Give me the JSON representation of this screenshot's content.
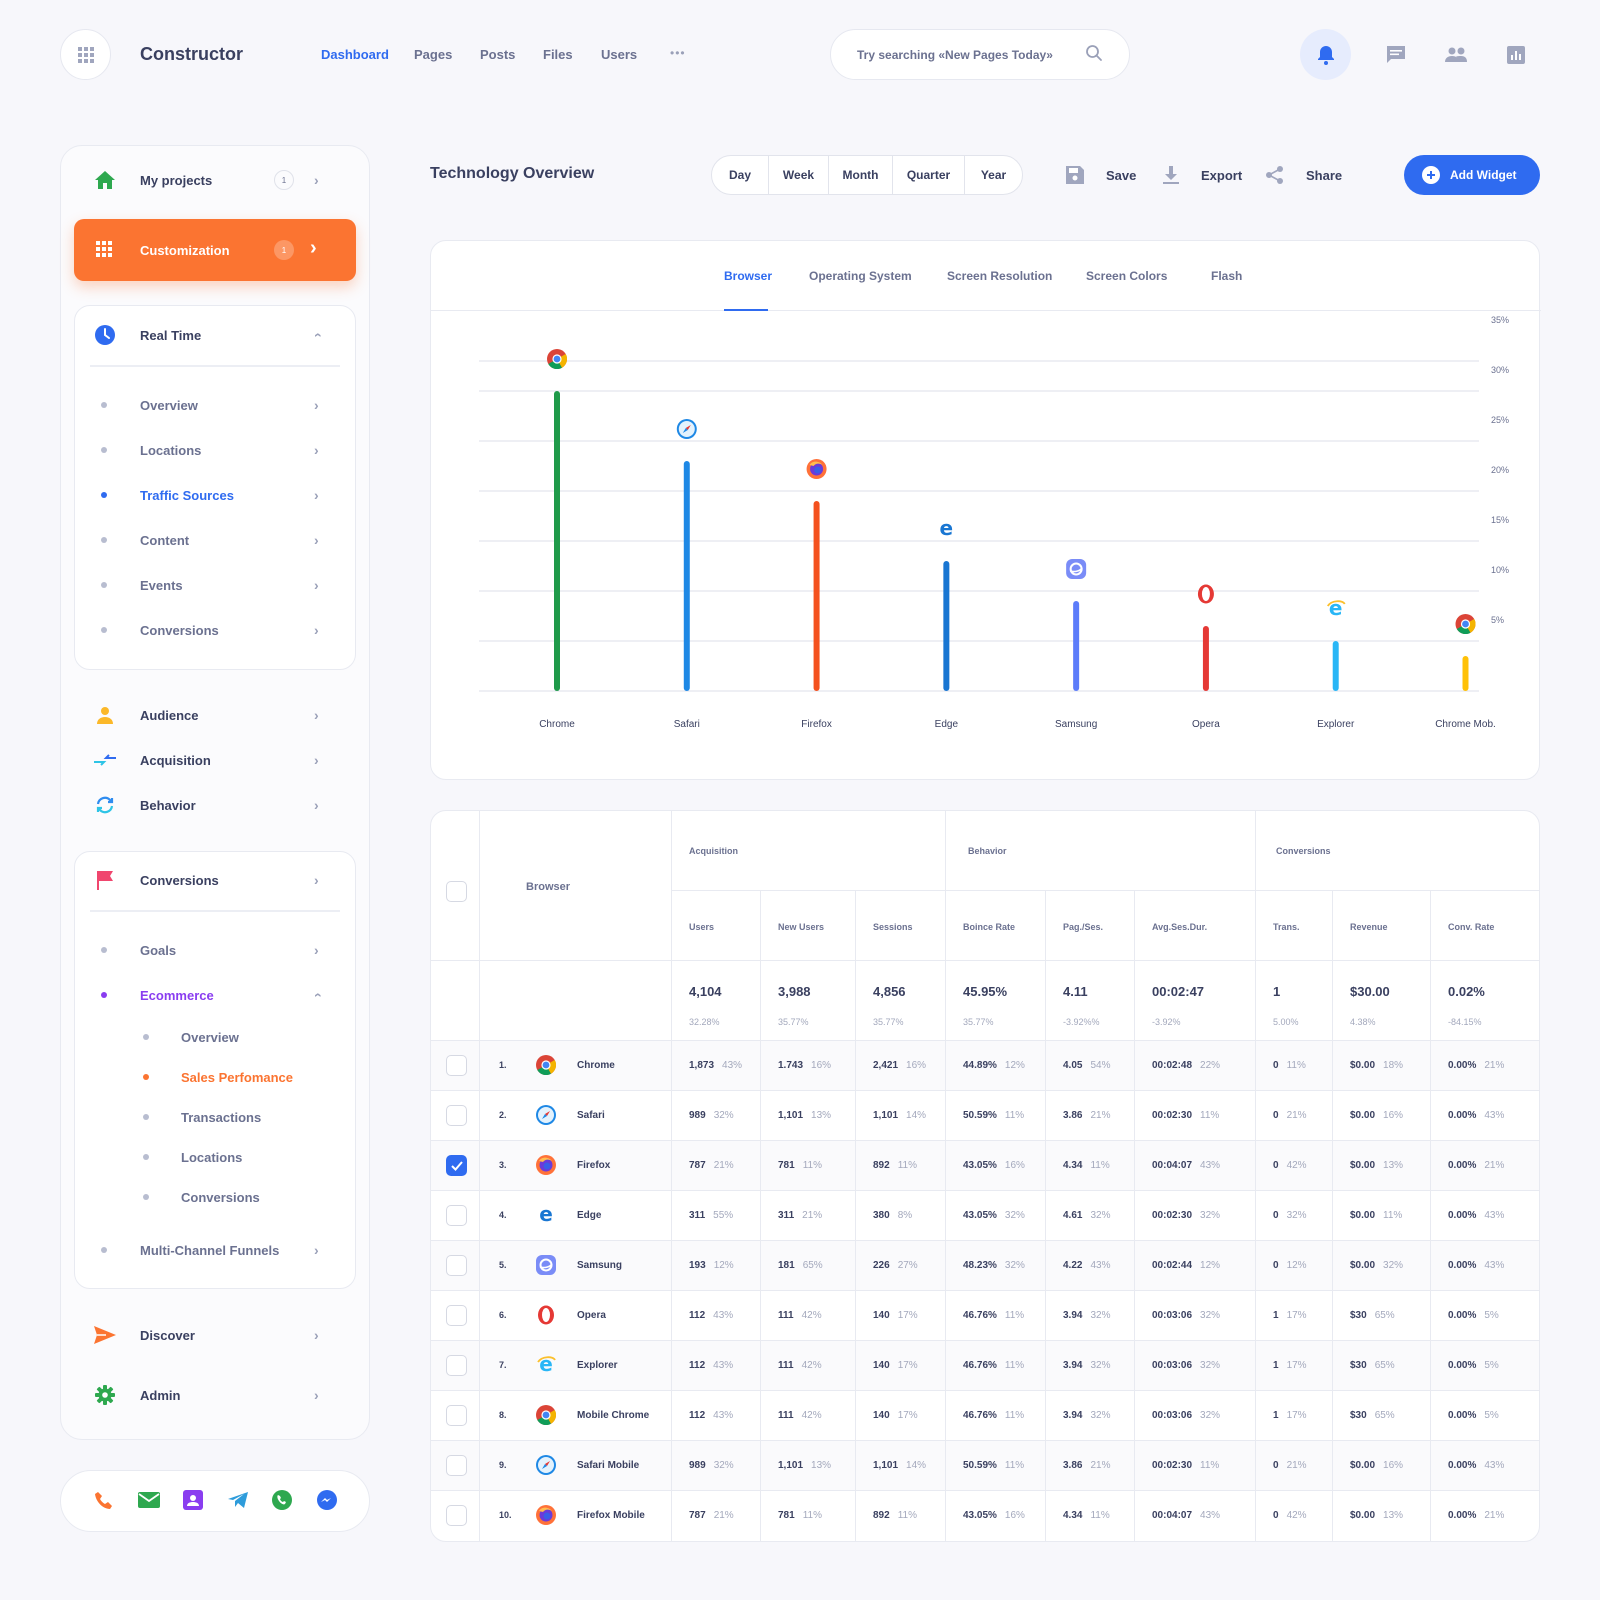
{
  "app": {
    "title": "Constructor"
  },
  "topnav": [
    {
      "label": "Dashboard",
      "active": true
    },
    {
      "label": "Pages"
    },
    {
      "label": "Posts"
    },
    {
      "label": "Files"
    },
    {
      "label": "Users"
    },
    {
      "label": "•••"
    }
  ],
  "search": {
    "placeholder": "Try searching «New Pages Today»"
  },
  "sidebar": {
    "my_projects": {
      "label": "My projects",
      "badge": "1"
    },
    "customization": {
      "label": "Customization",
      "badge": "1"
    },
    "real_time": {
      "label": "Real Time",
      "items": [
        "Overview",
        "Locations",
        "Traffic Sources",
        "Content",
        "Events",
        "Conversions"
      ]
    },
    "audience": "Audience",
    "acquisition": "Acquisition",
    "behavior": "Behavior",
    "conversions": {
      "label": "Conversions",
      "items": [
        "Goals",
        "Ecommerce",
        "Multi-Channel Funnels"
      ]
    },
    "ecommerce_items": [
      "Overview",
      "Sales Perfomance",
      "Transactions",
      "Locations",
      "Conversions"
    ],
    "discover": "Discover",
    "admin": "Admin"
  },
  "header": {
    "title": "Technology Overview",
    "periods": [
      "Day",
      "Week",
      "Month",
      "Quarter",
      "Year"
    ],
    "save": "Save",
    "export": "Export",
    "share": "Share",
    "add_widget": "Add Widget"
  },
  "chart_tabs": [
    "Browser",
    "Operating System",
    "Screen Resolution",
    "Screen Colors",
    "Flash"
  ],
  "chart_data": {
    "type": "bar",
    "categories": [
      "Chrome",
      "Safari",
      "Firefox",
      "Edge",
      "Samsung",
      "Opera",
      "Explorer",
      "Chrome Mob."
    ],
    "values": [
      30.0,
      23.0,
      19.0,
      13.0,
      9.0,
      6.5,
      5.0,
      3.5
    ],
    "ylim": [
      0,
      35
    ],
    "yticks": [
      5,
      10,
      15,
      20,
      25,
      30,
      35
    ],
    "ytick_labels": [
      "5%",
      "10%",
      "15%",
      "20%",
      "25%",
      "30%",
      "35%"
    ],
    "colors": [
      "#1f9a4a",
      "#1e88e5",
      "#f4511e",
      "#1976d2",
      "#5c7cfa",
      "#e53935",
      "#29b6f6",
      "#ffc107"
    ],
    "grid": true
  },
  "table": {
    "browser_header": "Browser",
    "groups": [
      "Acquisition",
      "Behavior",
      "Conversions"
    ],
    "columns": [
      "Users",
      "New Users",
      "Sessions",
      "Boince Rate",
      "Pag./Ses.",
      "Avg.Ses.Dur.",
      "Trans.",
      "Revenue",
      "Conv. Rate"
    ],
    "totals": [
      "4,104",
      "3,988",
      "4,856",
      "45.95%",
      "4.11",
      "00:02:47",
      "1",
      "$30.00",
      "0.02%"
    ],
    "totals_pct": [
      "32.28%",
      "35.77%",
      "35.77%",
      "35.77%",
      "-3.92%%",
      "-3.92%",
      "5.00%",
      "4.38%",
      "-84.15%"
    ],
    "rows": [
      {
        "n": "1.",
        "name": "Chrome",
        "icon": "chrome",
        "checked": false,
        "v": [
          [
            "1,873",
            "43%"
          ],
          [
            "1.743",
            "16%"
          ],
          [
            "2,421",
            "16%"
          ],
          [
            "44.89%",
            "12%"
          ],
          [
            "4.05",
            "54%"
          ],
          [
            "00:02:48",
            "22%"
          ],
          [
            "0",
            "11%"
          ],
          [
            "$0.00",
            "18%"
          ],
          [
            "0.00%",
            "21%"
          ]
        ]
      },
      {
        "n": "2.",
        "name": "Safari",
        "icon": "safari",
        "checked": false,
        "v": [
          [
            "989",
            "32%"
          ],
          [
            "1,101",
            "13%"
          ],
          [
            "1,101",
            "14%"
          ],
          [
            "50.59%",
            "11%"
          ],
          [
            "3.86",
            "21%"
          ],
          [
            "00:02:30",
            "11%"
          ],
          [
            "0",
            "21%"
          ],
          [
            "$0.00",
            "16%"
          ],
          [
            "0.00%",
            "43%"
          ]
        ]
      },
      {
        "n": "3.",
        "name": "Firefox",
        "icon": "firefox",
        "checked": true,
        "v": [
          [
            "787",
            "21%"
          ],
          [
            "781",
            "11%"
          ],
          [
            "892",
            "11%"
          ],
          [
            "43.05%",
            "16%"
          ],
          [
            "4.34",
            "11%"
          ],
          [
            "00:04:07",
            "43%"
          ],
          [
            "0",
            "42%"
          ],
          [
            "$0.00",
            "13%"
          ],
          [
            "0.00%",
            "21%"
          ]
        ]
      },
      {
        "n": "4.",
        "name": "Edge",
        "icon": "edge",
        "checked": false,
        "v": [
          [
            "311",
            "55%"
          ],
          [
            "311",
            "21%"
          ],
          [
            "380",
            "8%"
          ],
          [
            "43.05%",
            "32%"
          ],
          [
            "4.61",
            "32%"
          ],
          [
            "00:02:30",
            "32%"
          ],
          [
            "0",
            "32%"
          ],
          [
            "$0.00",
            "11%"
          ],
          [
            "0.00%",
            "43%"
          ]
        ]
      },
      {
        "n": "5.",
        "name": "Samsung",
        "icon": "samsung",
        "checked": false,
        "v": [
          [
            "193",
            "12%"
          ],
          [
            "181",
            "65%"
          ],
          [
            "226",
            "27%"
          ],
          [
            "48.23%",
            "32%"
          ],
          [
            "4.22",
            "43%"
          ],
          [
            "00:02:44",
            "12%"
          ],
          [
            "0",
            "12%"
          ],
          [
            "$0.00",
            "32%"
          ],
          [
            "0.00%",
            "43%"
          ]
        ]
      },
      {
        "n": "6.",
        "name": "Opera",
        "icon": "opera",
        "checked": false,
        "v": [
          [
            "112",
            "43%"
          ],
          [
            "111",
            "42%"
          ],
          [
            "140",
            "17%"
          ],
          [
            "46.76%",
            "11%"
          ],
          [
            "3.94",
            "32%"
          ],
          [
            "00:03:06",
            "32%"
          ],
          [
            "1",
            "17%"
          ],
          [
            "$30",
            "65%"
          ],
          [
            "0.00%",
            "5%"
          ]
        ]
      },
      {
        "n": "7.",
        "name": "Explorer",
        "icon": "explorer",
        "checked": false,
        "v": [
          [
            "112",
            "43%"
          ],
          [
            "111",
            "42%"
          ],
          [
            "140",
            "17%"
          ],
          [
            "46.76%",
            "11%"
          ],
          [
            "3.94",
            "32%"
          ],
          [
            "00:03:06",
            "32%"
          ],
          [
            "1",
            "17%"
          ],
          [
            "$30",
            "65%"
          ],
          [
            "0.00%",
            "5%"
          ]
        ]
      },
      {
        "n": "8.",
        "name": "Mobile Chrome",
        "icon": "chrome",
        "checked": false,
        "v": [
          [
            "112",
            "43%"
          ],
          [
            "111",
            "42%"
          ],
          [
            "140",
            "17%"
          ],
          [
            "46.76%",
            "11%"
          ],
          [
            "3.94",
            "32%"
          ],
          [
            "00:03:06",
            "32%"
          ],
          [
            "1",
            "17%"
          ],
          [
            "$30",
            "65%"
          ],
          [
            "0.00%",
            "5%"
          ]
        ]
      },
      {
        "n": "9.",
        "name": "Safari Mobile",
        "icon": "safari",
        "checked": false,
        "v": [
          [
            "989",
            "32%"
          ],
          [
            "1,101",
            "13%"
          ],
          [
            "1,101",
            "14%"
          ],
          [
            "50.59%",
            "11%"
          ],
          [
            "3.86",
            "21%"
          ],
          [
            "00:02:30",
            "11%"
          ],
          [
            "0",
            "21%"
          ],
          [
            "$0.00",
            "16%"
          ],
          [
            "0.00%",
            "43%"
          ]
        ]
      },
      {
        "n": "10.",
        "name": "Firefox Mobile",
        "icon": "firefox",
        "checked": false,
        "v": [
          [
            "787",
            "21%"
          ],
          [
            "781",
            "11%"
          ],
          [
            "892",
            "11%"
          ],
          [
            "43.05%",
            "16%"
          ],
          [
            "4.34",
            "11%"
          ],
          [
            "00:04:07",
            "43%"
          ],
          [
            "0",
            "42%"
          ],
          [
            "$0.00",
            "13%"
          ],
          [
            "0.00%",
            "21%"
          ]
        ]
      }
    ]
  }
}
